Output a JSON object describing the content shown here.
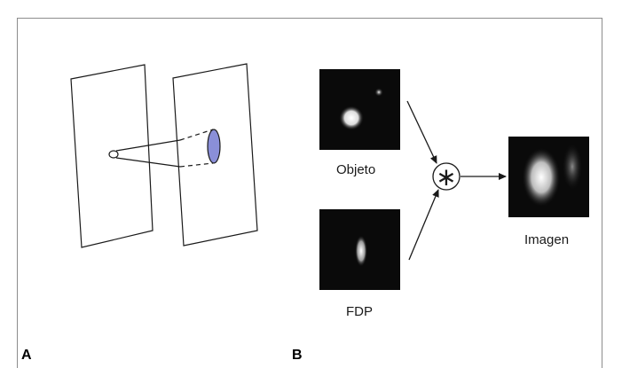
{
  "panels": {
    "a": "A",
    "b": "B"
  },
  "labels": {
    "object": "Objeto",
    "psf": "FDP",
    "image": "Imagen"
  },
  "operator": "∗",
  "colors": {
    "ellipse_fill": "#8a8fd8",
    "frame": "#8c8c8c"
  }
}
